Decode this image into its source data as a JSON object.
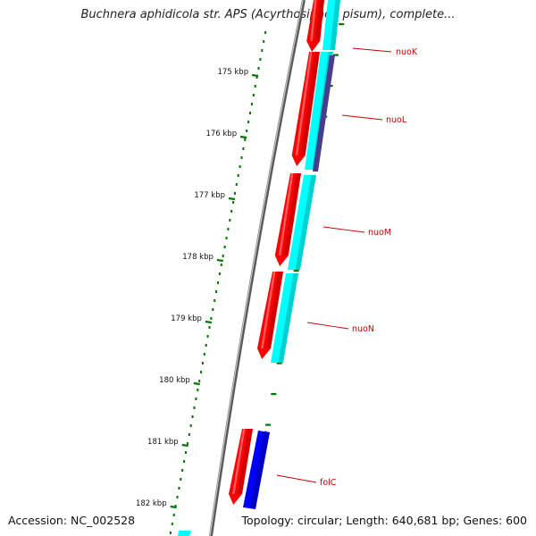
{
  "title": "Buchnera aphidicola str. APS (Acyrthosiphon pisum), complete...",
  "footer": {
    "accession": "Accession: NC_002528",
    "summary": "Topology: circular; Length: 640,681 bp; Genes: 600"
  },
  "colors": {
    "backbone": "#8a8a8a",
    "cds_forward": "#ff0000",
    "cds_reverse": "#00ffff",
    "cds_other": "#0000ff",
    "cds_dark": "#483d8b",
    "ticks": "#007700",
    "labels": "#cc0000"
  },
  "ticks": [
    {
      "label": "175 kbp"
    },
    {
      "label": "176 kbp"
    },
    {
      "label": "177 kbp"
    },
    {
      "label": "178 kbp"
    },
    {
      "label": "179 kbp"
    },
    {
      "label": "180 kbp"
    },
    {
      "label": "181 kbp"
    },
    {
      "label": "182 kbp"
    }
  ],
  "genes": [
    {
      "name": "nuoK"
    },
    {
      "name": "nuoL"
    },
    {
      "name": "nuoM"
    },
    {
      "name": "nuoN"
    },
    {
      "name": "folC"
    }
  ]
}
